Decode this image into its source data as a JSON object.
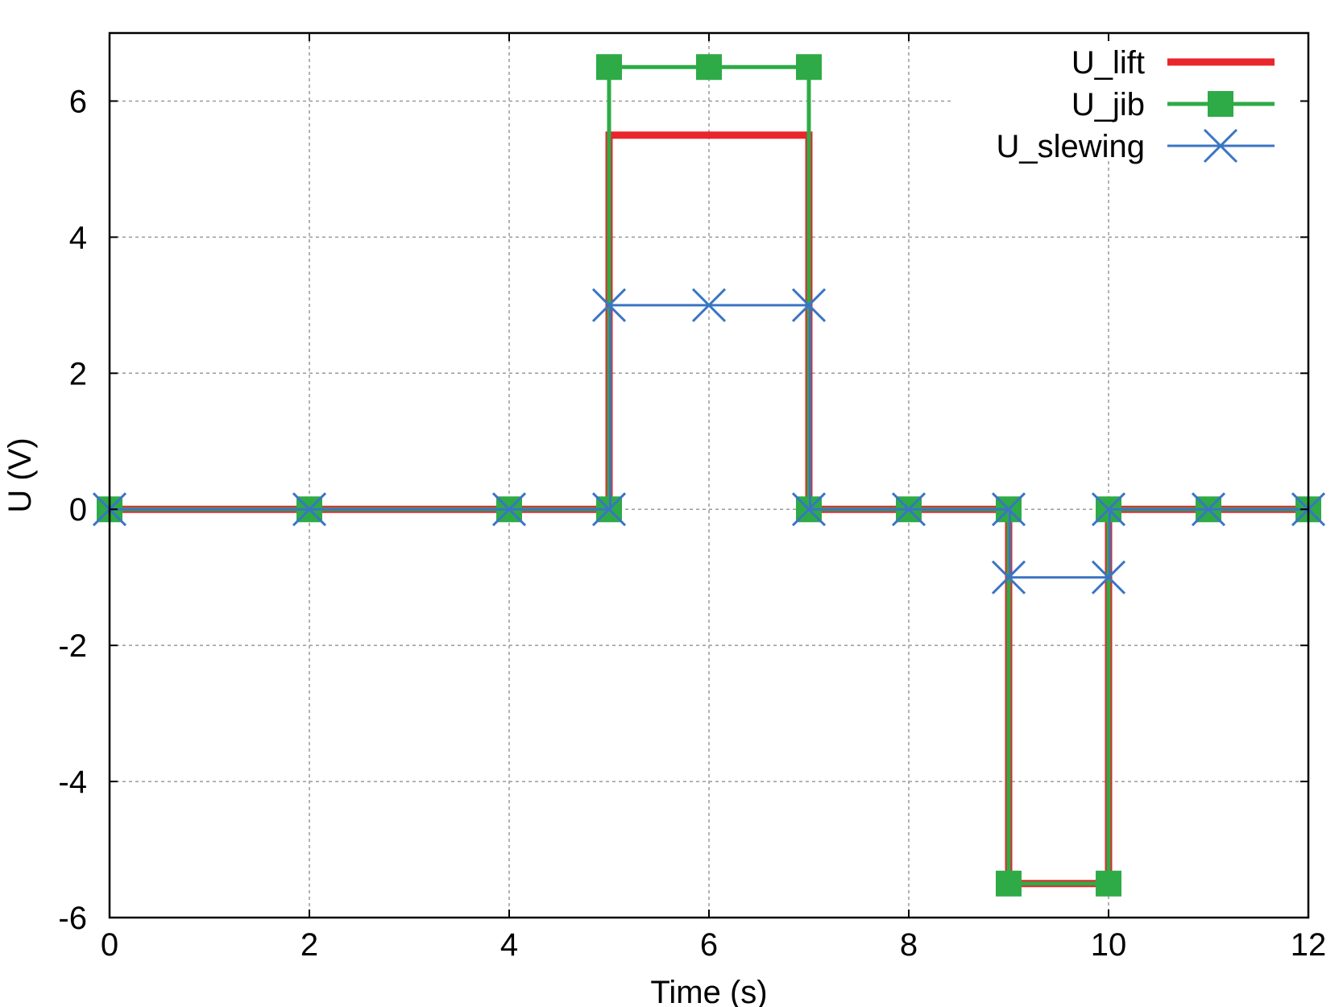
{
  "chart_data": {
    "type": "line",
    "xlabel": "Time (s)",
    "ylabel": "U (V)",
    "xlim": [
      0,
      12
    ],
    "ylim": [
      -6,
      7
    ],
    "xticks": [
      0,
      2,
      4,
      6,
      8,
      10,
      12
    ],
    "yticks": [
      -6,
      -4,
      -2,
      0,
      2,
      4,
      6
    ],
    "grid": true,
    "legend_position": "top-right",
    "series": [
      {
        "name": "U_lift",
        "color": "#e8262b",
        "marker": "none",
        "x": [
          0,
          5,
          5,
          7,
          7,
          9,
          9,
          10,
          10,
          12
        ],
        "y": [
          0,
          0,
          5.5,
          5.5,
          0,
          0,
          -5.5,
          -5.5,
          0,
          0
        ],
        "marker_x": [],
        "marker_y": []
      },
      {
        "name": "U_jib",
        "color": "#2eab47",
        "marker": "square",
        "x": [
          0,
          5,
          5,
          7,
          7,
          9,
          9,
          10,
          10,
          12
        ],
        "y": [
          0,
          0,
          6.5,
          6.5,
          0,
          0,
          -5.5,
          -5.5,
          0,
          0
        ],
        "marker_x": [
          0,
          2,
          4,
          5,
          5,
          6,
          7,
          7,
          8,
          9,
          9,
          10,
          10,
          11,
          12
        ],
        "marker_y": [
          0,
          0,
          0,
          0,
          6.5,
          6.5,
          6.5,
          0,
          0,
          0,
          -5.5,
          -5.5,
          0,
          0,
          0
        ]
      },
      {
        "name": "U_slewing",
        "color": "#3a75c4",
        "marker": "x",
        "x": [
          0,
          5,
          5,
          7,
          7,
          9,
          9,
          10,
          10,
          12
        ],
        "y": [
          0,
          0,
          3,
          3,
          0,
          0,
          -1,
          -1,
          0,
          0
        ],
        "marker_x": [
          0,
          2,
          4,
          5,
          5,
          6,
          7,
          7,
          8,
          9,
          9,
          10,
          10,
          11,
          12
        ],
        "marker_y": [
          0,
          0,
          0,
          0,
          3,
          3,
          3,
          0,
          0,
          0,
          -1,
          -1,
          0,
          0,
          0
        ]
      }
    ]
  }
}
